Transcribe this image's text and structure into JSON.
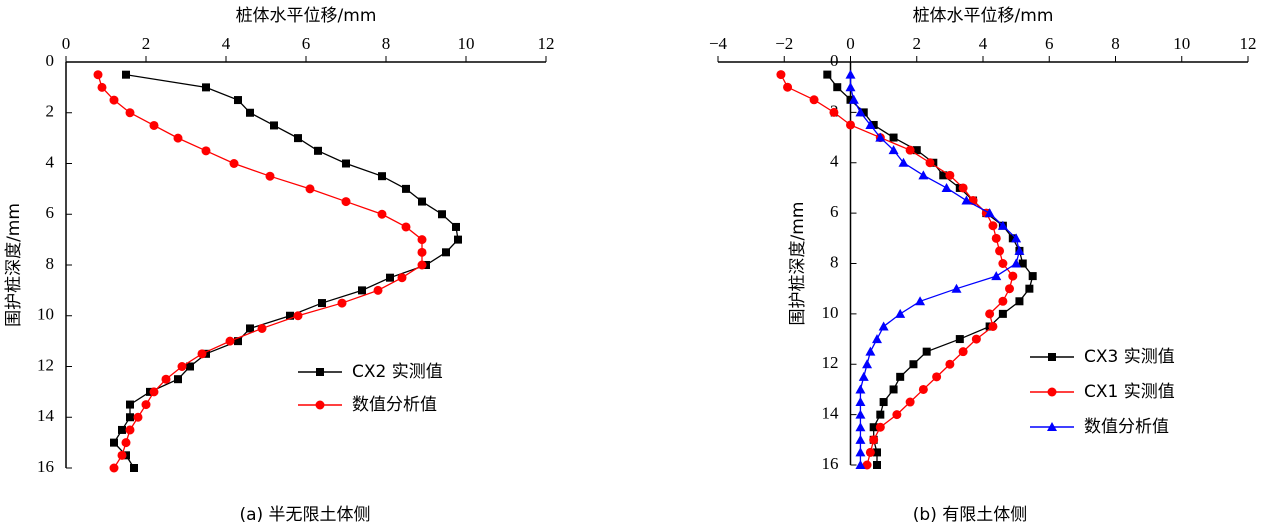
{
  "chart_data": [
    {
      "type": "line",
      "caption": "(a) 半无限土体侧",
      "x_label": "桩体水平位移/mm",
      "y_label": "围护桩深度/mm",
      "x_axis_position": "top",
      "y_inverted": true,
      "legend": "lower right",
      "xlim": [
        0,
        12
      ],
      "xticks": [
        0,
        2,
        4,
        6,
        8,
        10,
        12
      ],
      "ylim": [
        0,
        16
      ],
      "yticks": [
        0,
        2,
        4,
        6,
        8,
        10,
        12,
        14,
        16
      ],
      "series": [
        {
          "name": "CX2 实测值",
          "color": "#000000",
          "marker": "square",
          "x": [
            1.5,
            3.5,
            4.3,
            4.6,
            5.2,
            5.8,
            6.3,
            7.0,
            7.9,
            8.5,
            8.9,
            9.4,
            9.75,
            9.8,
            9.5,
            9.0,
            8.1,
            7.4,
            6.4,
            5.6,
            4.6,
            4.3,
            3.5,
            3.1,
            2.8,
            2.1,
            1.6,
            1.6,
            1.4,
            1.2,
            1.5,
            1.7
          ],
          "y": [
            0.5,
            1,
            1.5,
            2,
            2.5,
            3,
            3.5,
            4,
            4.5,
            5,
            5.5,
            6,
            6.5,
            7,
            7.5,
            8,
            8.5,
            9,
            9.5,
            10,
            10.5,
            11,
            11.5,
            12,
            12.5,
            13,
            13.5,
            14,
            14.5,
            15,
            15.5,
            16
          ]
        },
        {
          "name": "数值分析值",
          "color": "#ff0000",
          "marker": "circle",
          "x": [
            0.8,
            0.9,
            1.2,
            1.6,
            2.2,
            2.8,
            3.5,
            4.2,
            5.1,
            6.1,
            7.0,
            7.9,
            8.5,
            8.9,
            8.9,
            8.9,
            8.4,
            7.8,
            6.9,
            5.8,
            4.9,
            4.1,
            3.4,
            2.9,
            2.5,
            2.2,
            2.0,
            1.8,
            1.6,
            1.5,
            1.4,
            1.2
          ],
          "y": [
            0.5,
            1,
            1.5,
            2,
            2.5,
            3,
            3.5,
            4,
            4.5,
            5,
            5.5,
            6,
            6.5,
            7,
            7.5,
            8,
            8.5,
            9,
            9.5,
            10,
            10.5,
            11,
            11.5,
            12,
            12.5,
            13,
            13.5,
            14,
            14.5,
            15,
            15.5,
            16
          ]
        }
      ]
    },
    {
      "type": "line",
      "caption": "(b) 有限土体侧",
      "x_label": "桩体水平位移/mm",
      "y_label": "围护桩深度/mm",
      "x_axis_position": "top",
      "y_inverted": true,
      "legend": "lower right",
      "xlim": [
        -4,
        12
      ],
      "xticks": [
        {
          "value": -4,
          "label": "−4"
        },
        {
          "value": -2,
          "label": "−2"
        },
        0,
        2,
        4,
        6,
        8,
        10,
        12
      ],
      "ylim": [
        0,
        16
      ],
      "yticks": [
        0,
        2,
        4,
        6,
        8,
        10,
        12,
        14,
        16
      ],
      "series": [
        {
          "name": "CX3 实测值",
          "color": "#000000",
          "marker": "square",
          "x": [
            -0.7,
            -0.4,
            0,
            0.4,
            0.7,
            1.3,
            2.0,
            2.5,
            2.8,
            3.3,
            3.7,
            4.1,
            4.6,
            4.9,
            5.1,
            5.2,
            5.5,
            5.4,
            5.1,
            4.6,
            4.2,
            3.3,
            2.3,
            1.9,
            1.5,
            1.3,
            1.0,
            0.9,
            0.7,
            0.7,
            0.8,
            0.8
          ],
          "y": [
            0.5,
            1,
            1.5,
            2,
            2.5,
            3,
            3.5,
            4,
            4.5,
            5,
            5.5,
            6,
            6.5,
            7,
            7.5,
            8,
            8.5,
            9,
            9.5,
            10,
            10.5,
            11,
            11.5,
            12,
            12.5,
            13,
            13.5,
            14,
            14.5,
            15,
            15.5,
            16
          ]
        },
        {
          "name": "CX1 实测值",
          "color": "#ff0000",
          "marker": "circle",
          "x": [
            -2.1,
            -1.9,
            -1.1,
            -0.5,
            0,
            0.9,
            1.8,
            2.4,
            3.0,
            3.4,
            3.7,
            4.1,
            4.3,
            4.4,
            4.5,
            4.6,
            4.9,
            4.8,
            4.6,
            4.2,
            4.3,
            3.8,
            3.4,
            3.0,
            2.6,
            2.2,
            1.8,
            1.4,
            0.9,
            0.7,
            0.6,
            0.5
          ],
          "y": [
            0.5,
            1,
            1.5,
            2,
            2.5,
            3,
            3.5,
            4,
            4.5,
            5,
            5.5,
            6,
            6.5,
            7,
            7.5,
            8,
            8.5,
            9,
            9.5,
            10,
            10.5,
            11,
            11.5,
            12,
            12.5,
            13,
            13.5,
            14,
            14.5,
            15,
            15.5,
            16
          ]
        },
        {
          "name": "数值分析值",
          "color": "#0000ff",
          "marker": "triangle",
          "x": [
            0,
            0,
            0.1,
            0.3,
            0.6,
            0.9,
            1.3,
            1.6,
            2.2,
            2.9,
            3.5,
            4.2,
            4.6,
            5.0,
            5.1,
            5.0,
            4.4,
            3.2,
            2.1,
            1.5,
            1.0,
            0.8,
            0.6,
            0.5,
            0.4,
            0.3,
            0.3,
            0.3,
            0.3,
            0.3,
            0.3,
            0.3
          ],
          "y": [
            0.5,
            1,
            1.5,
            2,
            2.5,
            3,
            3.5,
            4,
            4.5,
            5,
            5.5,
            6,
            6.5,
            7,
            7.5,
            8,
            8.5,
            9,
            9.5,
            10,
            10.5,
            11,
            11.5,
            12,
            12.5,
            13,
            13.5,
            14,
            14.5,
            15,
            15.5,
            16
          ]
        }
      ]
    }
  ]
}
